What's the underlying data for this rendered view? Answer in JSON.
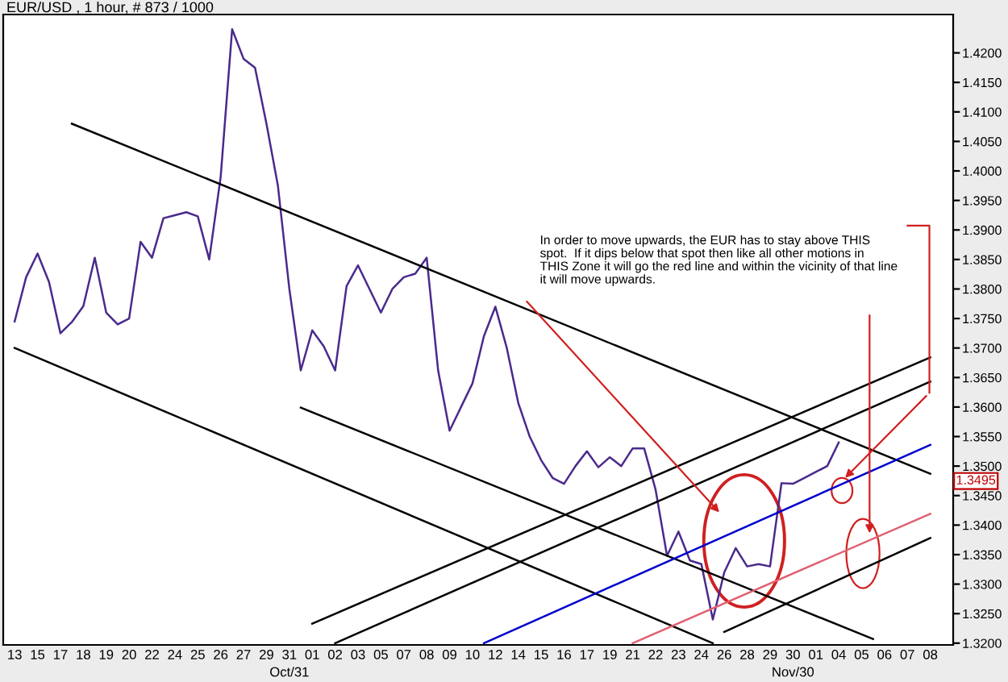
{
  "chart_data": {
    "type": "line",
    "title": "EUR/USD , 1 hour, # 873 / 1000",
    "categories": [
      "13",
      null,
      "15",
      null,
      "17",
      null,
      "18",
      null,
      "19",
      null,
      "20",
      null,
      "22",
      null,
      "24",
      null,
      "25",
      null,
      "26",
      null,
      "27",
      null,
      "29",
      null,
      "31\nOct/31",
      null,
      "01",
      null,
      "02",
      null,
      "03",
      null,
      "05",
      null,
      "07",
      null,
      "08",
      null,
      "09",
      null,
      "10",
      null,
      "12",
      null,
      "14",
      null,
      "15",
      null,
      "16",
      null,
      "17",
      null,
      "19",
      null,
      "21",
      null,
      "22",
      null,
      "23",
      null,
      "24",
      null,
      "26",
      null,
      "28",
      null,
      "29",
      null,
      "30\nNov/30",
      null,
      "01",
      null,
      "04",
      null,
      "05",
      null,
      "06",
      null,
      "07",
      null,
      "08"
    ],
    "ylim": [
      1.3197,
      1.4265
    ],
    "yticks": [
      {
        "value": 1.32,
        "label": "1.3200"
      },
      {
        "value": 1.325,
        "label": "1.3250"
      },
      {
        "value": 1.33,
        "label": "1.3300"
      },
      {
        "value": 1.335,
        "label": "1.3350"
      },
      {
        "value": 1.34,
        "label": "1.3400"
      },
      {
        "value": 1.345,
        "label": "1.3450"
      },
      {
        "value": 1.35,
        "label": "1.3500"
      },
      {
        "value": 1.355,
        "label": "1.3550"
      },
      {
        "value": 1.36,
        "label": "1.3600"
      },
      {
        "value": 1.365,
        "label": "1.3650"
      },
      {
        "value": 1.37,
        "label": "1.3700"
      },
      {
        "value": 1.375,
        "label": "1.3750"
      },
      {
        "value": 1.38,
        "label": "1.3800"
      },
      {
        "value": 1.385,
        "label": "1.3850"
      },
      {
        "value": 1.39,
        "label": "1.3900"
      },
      {
        "value": 1.395,
        "label": "1.3950"
      },
      {
        "value": 1.4,
        "label": "1.4000"
      },
      {
        "value": 1.405,
        "label": "1.4050"
      },
      {
        "value": 1.41,
        "label": "1.4100"
      },
      {
        "value": 1.415,
        "label": "1.4150"
      },
      {
        "value": 1.42,
        "label": "1.4200"
      }
    ],
    "grid": false,
    "legend": false,
    "marker": "none",
    "line_style": "solid",
    "series": [
      {
        "color": "#4a2a8c",
        "values": [
          1.3745,
          1.382,
          1.386,
          1.3812,
          1.3725,
          1.3744,
          1.3771,
          1.3853,
          1.376,
          1.374,
          1.375,
          1.388,
          1.3853,
          1.392,
          1.3925,
          1.393,
          1.3923,
          1.385,
          1.399,
          1.424,
          1.419,
          1.4175,
          1.408,
          1.3975,
          1.38,
          1.3662,
          1.373,
          1.3703,
          1.3662,
          1.3805,
          1.384,
          1.38,
          1.376,
          1.38,
          1.382,
          1.3826,
          1.3853,
          1.3662,
          1.356,
          1.36,
          1.364,
          1.372,
          1.377,
          1.37,
          1.3607,
          1.355,
          1.351,
          1.348,
          1.347,
          1.35,
          1.3525,
          1.3498,
          1.3515,
          1.35,
          1.353,
          1.353,
          1.346,
          1.3348,
          1.3389,
          1.334,
          1.3334,
          1.324,
          1.332,
          1.3361,
          1.333,
          1.3334,
          1.333,
          1.3471,
          1.347,
          1.348,
          1.349,
          1.35,
          1.354,
          null,
          null,
          null,
          null,
          null,
          null,
          null,
          null
        ]
      },
      {
        "color": "#000000",
        "values": [
          null,
          null,
          null,
          null,
          null,
          1.408,
          null,
          null,
          null,
          null,
          null,
          null,
          null,
          null,
          null,
          null,
          null,
          null,
          null,
          null,
          null,
          null,
          null,
          null,
          null,
          null,
          null,
          null,
          null,
          null,
          null,
          null,
          null,
          null,
          null,
          null,
          null,
          null,
          null,
          null,
          null,
          null,
          null,
          null,
          null,
          null,
          null,
          null,
          null,
          null,
          null,
          null,
          null,
          null,
          null,
          null,
          null,
          null,
          null,
          null,
          null,
          null,
          null,
          null,
          null,
          null,
          null,
          null,
          null,
          null,
          null,
          null,
          null,
          null,
          null,
          null,
          null,
          null,
          null,
          null,
          1.3487
        ]
      },
      {
        "color": "#000000",
        "values": [
          1.37,
          null,
          null,
          null,
          null,
          null,
          null,
          null,
          null,
          null,
          null,
          null,
          null,
          null,
          null,
          null,
          null,
          null,
          null,
          null,
          null,
          null,
          null,
          null,
          null,
          null,
          null,
          null,
          null,
          null,
          null,
          null,
          null,
          null,
          null,
          null,
          null,
          null,
          null,
          null,
          null,
          null,
          null,
          null,
          null,
          null,
          null,
          null,
          null,
          null,
          null,
          null,
          null,
          null,
          null,
          null,
          null,
          null,
          null,
          null,
          null,
          1.32,
          null,
          null,
          null,
          null,
          null,
          null,
          null,
          null,
          null,
          null,
          null,
          null,
          null,
          null,
          null,
          null,
          null,
          null,
          null
        ]
      },
      {
        "color": "#000000",
        "values": [
          null,
          null,
          null,
          null,
          null,
          null,
          null,
          null,
          null,
          null,
          null,
          null,
          null,
          null,
          null,
          null,
          null,
          null,
          null,
          null,
          null,
          null,
          null,
          null,
          null,
          1.3599,
          null,
          null,
          null,
          null,
          null,
          null,
          null,
          null,
          null,
          null,
          null,
          null,
          null,
          null,
          null,
          null,
          null,
          null,
          null,
          null,
          null,
          null,
          null,
          null,
          null,
          null,
          null,
          null,
          null,
          null,
          null,
          null,
          null,
          null,
          null,
          null,
          null,
          null,
          null,
          null,
          null,
          null,
          null,
          null,
          null,
          null,
          null,
          null,
          null,
          1.3207,
          null,
          null,
          null,
          null,
          null
        ]
      },
      {
        "color": "#000000",
        "values": [
          null,
          null,
          null,
          null,
          null,
          null,
          null,
          null,
          null,
          null,
          null,
          null,
          null,
          null,
          null,
          null,
          null,
          null,
          null,
          null,
          null,
          null,
          null,
          null,
          null,
          null,
          1.3233,
          null,
          null,
          null,
          null,
          null,
          null,
          null,
          null,
          null,
          null,
          null,
          null,
          null,
          null,
          null,
          null,
          null,
          null,
          null,
          null,
          null,
          null,
          null,
          null,
          null,
          null,
          null,
          null,
          null,
          null,
          null,
          null,
          null,
          null,
          null,
          null,
          null,
          null,
          null,
          null,
          null,
          null,
          null,
          null,
          null,
          null,
          null,
          null,
          null,
          null,
          null,
          null,
          null,
          1.3684
        ]
      },
      {
        "color": "#000000",
        "values": [
          null,
          null,
          null,
          null,
          null,
          null,
          null,
          null,
          null,
          null,
          null,
          null,
          null,
          null,
          null,
          null,
          null,
          null,
          null,
          null,
          null,
          null,
          null,
          null,
          null,
          null,
          null,
          null,
          1.32,
          null,
          null,
          null,
          null,
          null,
          null,
          null,
          null,
          null,
          null,
          null,
          null,
          null,
          null,
          null,
          null,
          null,
          null,
          null,
          null,
          null,
          null,
          null,
          null,
          null,
          null,
          null,
          null,
          null,
          null,
          null,
          null,
          null,
          null,
          null,
          null,
          null,
          null,
          null,
          null,
          null,
          null,
          null,
          null,
          null,
          null,
          null,
          null,
          null,
          null,
          null,
          1.3643
        ]
      },
      {
        "color": "#000000",
        "values": [
          null,
          null,
          null,
          null,
          null,
          null,
          null,
          null,
          null,
          null,
          null,
          null,
          null,
          null,
          null,
          null,
          null,
          null,
          null,
          null,
          null,
          null,
          null,
          null,
          null,
          null,
          null,
          null,
          null,
          null,
          null,
          null,
          null,
          null,
          null,
          null,
          null,
          null,
          null,
          null,
          null,
          null,
          null,
          null,
          null,
          null,
          null,
          null,
          null,
          null,
          null,
          null,
          null,
          null,
          null,
          null,
          null,
          null,
          null,
          null,
          null,
          null,
          1.3219,
          null,
          null,
          null,
          null,
          null,
          null,
          null,
          null,
          null,
          null,
          null,
          null,
          null,
          null,
          null,
          null,
          null,
          1.3378
        ]
      },
      {
        "color": "#0000cc",
        "values": [
          null,
          null,
          null,
          null,
          null,
          null,
          null,
          null,
          null,
          null,
          null,
          null,
          null,
          null,
          null,
          null,
          null,
          null,
          null,
          null,
          null,
          null,
          null,
          null,
          null,
          null,
          null,
          null,
          null,
          null,
          null,
          null,
          null,
          null,
          null,
          null,
          null,
          null,
          null,
          null,
          null,
          1.32,
          null,
          null,
          null,
          null,
          null,
          null,
          null,
          null,
          null,
          null,
          null,
          null,
          null,
          null,
          null,
          null,
          null,
          null,
          null,
          null,
          null,
          null,
          null,
          null,
          null,
          null,
          null,
          null,
          null,
          null,
          null,
          null,
          null,
          null,
          null,
          null,
          null,
          null,
          1.3536
        ]
      },
      {
        "color": "#e06070",
        "values": [
          null,
          null,
          null,
          null,
          null,
          null,
          null,
          null,
          null,
          null,
          null,
          null,
          null,
          null,
          null,
          null,
          null,
          null,
          null,
          null,
          null,
          null,
          null,
          null,
          null,
          null,
          null,
          null,
          null,
          null,
          null,
          null,
          null,
          null,
          null,
          null,
          null,
          null,
          null,
          null,
          null,
          null,
          null,
          null,
          null,
          null,
          null,
          null,
          null,
          null,
          null,
          null,
          null,
          null,
          1.32,
          null,
          null,
          null,
          null,
          null,
          null,
          null,
          null,
          null,
          null,
          null,
          null,
          null,
          null,
          null,
          null,
          null,
          null,
          null,
          null,
          null,
          null,
          null,
          null,
          null,
          1.3419
        ]
      }
    ],
    "annotations": [
      "In order to move upwards, the EUR has to stay above THIS\nspot.  If it dips below that spot then like all other motions in\nTHIS Zone it will go the red line and within the vicinity of that line\nit will move upwards.",
      "1.3495"
    ]
  }
}
